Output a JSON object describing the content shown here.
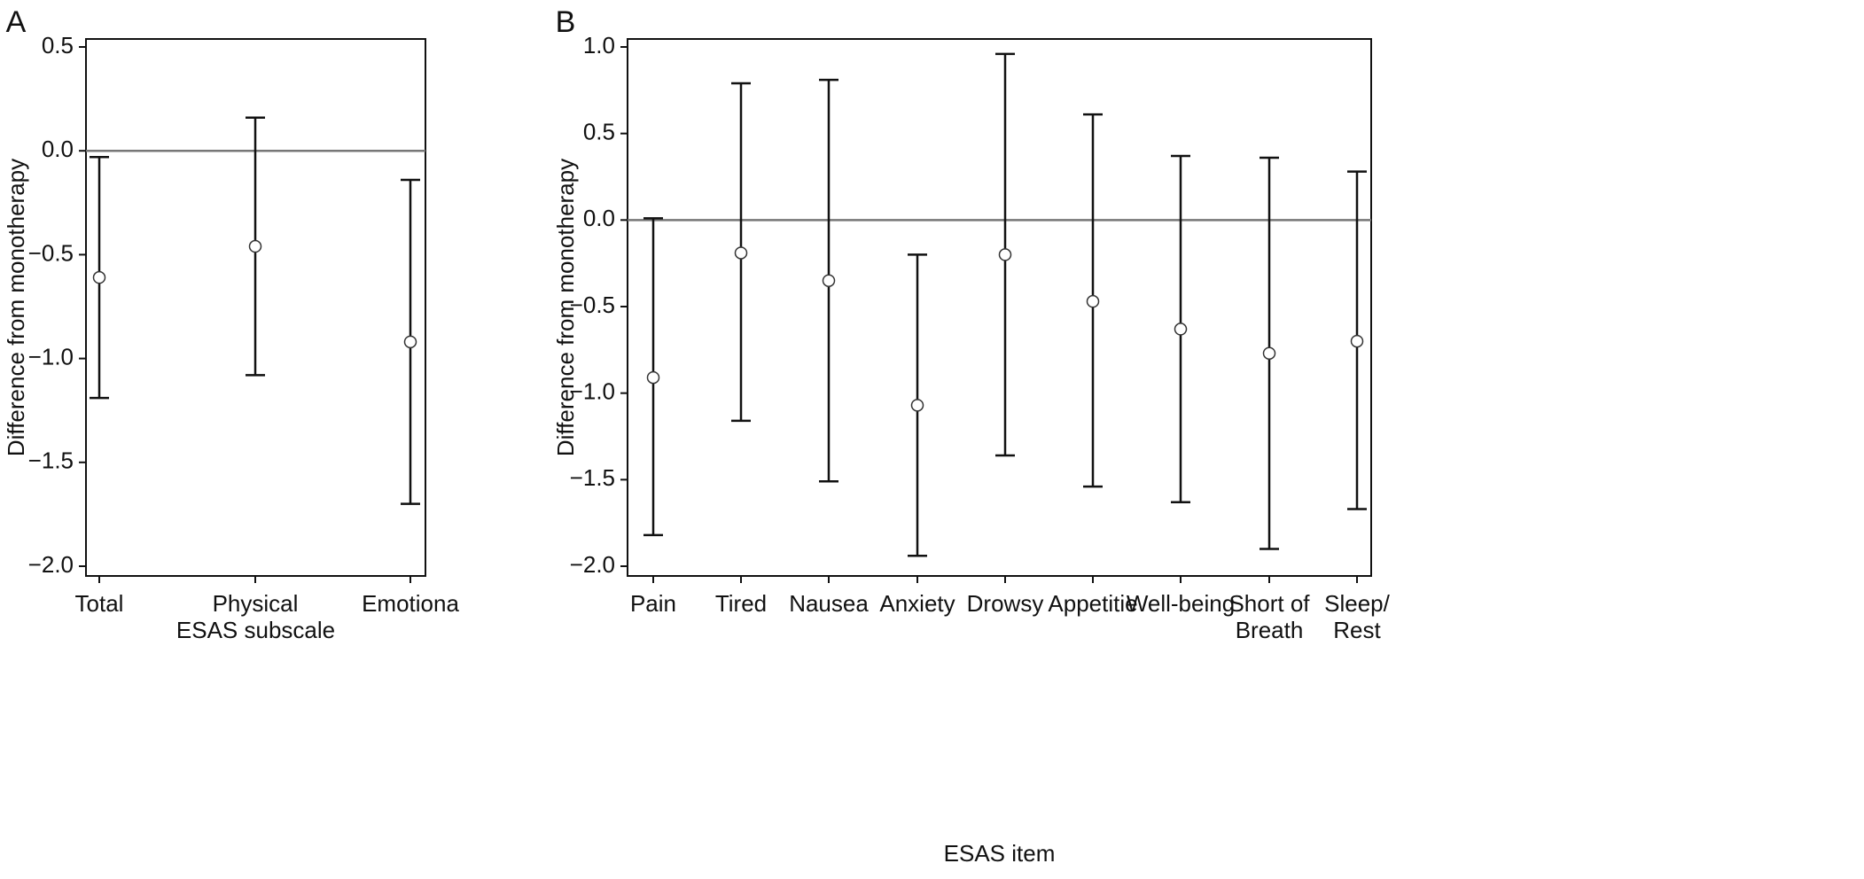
{
  "chart_data": [
    {
      "panel": "A",
      "type": "errorbar",
      "xlabel": "ESAS subscale",
      "ylabel": "Difference from monotherapy",
      "ylim": [
        -2.0,
        0.5
      ],
      "yticks": [
        "0.5",
        "0.0",
        "−0.5",
        "−1.0",
        "−1.5",
        "−2.0"
      ],
      "ytick_values": [
        0.5,
        0.0,
        -0.5,
        -1.0,
        -1.5,
        -2.0
      ],
      "reference_line": 0.0,
      "categories": [
        [
          "Total"
        ],
        [
          "Physical"
        ],
        [
          "Emotiona"
        ]
      ],
      "estimates": [
        -0.61,
        -0.46,
        -0.92
      ],
      "lower": [
        -1.19,
        -1.08,
        -1.7
      ],
      "upper": [
        -0.03,
        0.16,
        -0.14
      ]
    },
    {
      "panel": "B",
      "type": "errorbar",
      "xlabel": "ESAS item",
      "ylabel": "Difference from monotherapy",
      "ylim": [
        -2.0,
        1.0
      ],
      "yticks": [
        "1.0",
        "0.5",
        "0.0",
        "−0.5",
        "−1.0",
        "−1.5",
        "−2.0"
      ],
      "ytick_values": [
        1.0,
        0.5,
        0.0,
        -0.5,
        -1.0,
        -1.5,
        -2.0
      ],
      "reference_line": 0.0,
      "categories": [
        [
          "Pain"
        ],
        [
          "Tired"
        ],
        [
          "Nausea"
        ],
        [
          "Anxiety"
        ],
        [
          "Drowsy"
        ],
        [
          "Appetitie"
        ],
        [
          "Well-being"
        ],
        [
          "Short of",
          "Breath"
        ],
        [
          "Sleep/",
          "Rest"
        ]
      ],
      "estimates": [
        -0.91,
        -0.19,
        -0.35,
        -1.07,
        -0.2,
        -0.47,
        -0.63,
        -0.77,
        -0.7
      ],
      "lower": [
        -1.82,
        -1.16,
        -1.51,
        -1.94,
        -1.36,
        -1.54,
        -1.63,
        -1.9,
        -1.67
      ],
      "upper": [
        0.01,
        0.79,
        0.81,
        -0.2,
        0.96,
        0.61,
        0.37,
        0.36,
        0.28
      ]
    }
  ]
}
